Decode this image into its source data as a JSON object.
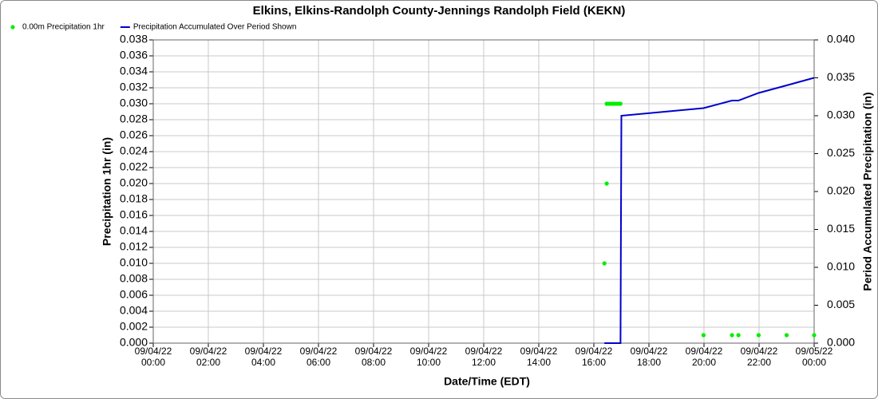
{
  "chart_data": {
    "type": "scatter-line",
    "title": "Elkins, Elkins-Randolph County-Jennings Randolph Field (KEKN)",
    "xlabel": "Date/Time (EDT)",
    "ylabel": "Precipitation 1hr (in)",
    "y2label": "Period Accumulated Precipitation (in)",
    "xlim": [
      "2022-09-04T00:00",
      "2022-09-05T00:00"
    ],
    "xticks": [
      {
        "value": "2022-09-04T00:00",
        "label": "09/04/22\n00:00"
      },
      {
        "value": "2022-09-04T02:00",
        "label": "09/04/22\n02:00"
      },
      {
        "value": "2022-09-04T04:00",
        "label": "09/04/22\n04:00"
      },
      {
        "value": "2022-09-04T06:00",
        "label": "09/04/22\n06:00"
      },
      {
        "value": "2022-09-04T08:00",
        "label": "09/04/22\n08:00"
      },
      {
        "value": "2022-09-04T10:00",
        "label": "09/04/22\n10:00"
      },
      {
        "value": "2022-09-04T12:00",
        "label": "09/04/22\n12:00"
      },
      {
        "value": "2022-09-04T14:00",
        "label": "09/04/22\n14:00"
      },
      {
        "value": "2022-09-04T16:00",
        "label": "09/04/22\n16:00"
      },
      {
        "value": "2022-09-04T18:00",
        "label": "09/04/22\n18:00"
      },
      {
        "value": "2022-09-04T20:00",
        "label": "09/04/22\n20:00"
      },
      {
        "value": "2022-09-04T22:00",
        "label": "09/04/22\n22:00"
      },
      {
        "value": "2022-09-05T00:00",
        "label": "09/05/22\n00:00"
      }
    ],
    "ylim": [
      0,
      0.038
    ],
    "yticks": [
      {
        "value": 0,
        "label": "0.000"
      },
      {
        "value": 0.002,
        "label": "0.002"
      },
      {
        "value": 0.004,
        "label": "0.004"
      },
      {
        "value": 0.006,
        "label": "0.006"
      },
      {
        "value": 0.008,
        "label": "0.008"
      },
      {
        "value": 0.01,
        "label": "0.010"
      },
      {
        "value": 0.012,
        "label": "0.012"
      },
      {
        "value": 0.014,
        "label": "0.014"
      },
      {
        "value": 0.016,
        "label": "0.016"
      },
      {
        "value": 0.018,
        "label": "0.018"
      },
      {
        "value": 0.02,
        "label": "0.020"
      },
      {
        "value": 0.022,
        "label": "0.022"
      },
      {
        "value": 0.024,
        "label": "0.024"
      },
      {
        "value": 0.026,
        "label": "0.026"
      },
      {
        "value": 0.028,
        "label": "0.028"
      },
      {
        "value": 0.03,
        "label": "0.030"
      },
      {
        "value": 0.032,
        "label": "0.032"
      },
      {
        "value": 0.034,
        "label": "0.034"
      },
      {
        "value": 0.036,
        "label": "0.036"
      },
      {
        "value": 0.038,
        "label": "0.038"
      }
    ],
    "y2lim": [
      0,
      0.04
    ],
    "y2ticks": [
      {
        "value": 0,
        "label": "0.000"
      },
      {
        "value": 0.005,
        "label": "0.005"
      },
      {
        "value": 0.01,
        "label": "0.010"
      },
      {
        "value": 0.015,
        "label": "0.015"
      },
      {
        "value": 0.02,
        "label": "0.020"
      },
      {
        "value": 0.025,
        "label": "0.025"
      },
      {
        "value": 0.03,
        "label": "0.030"
      },
      {
        "value": 0.035,
        "label": "0.035"
      },
      {
        "value": 0.04,
        "label": "0.040"
      }
    ],
    "grid": true,
    "legend": "top-left",
    "series": [
      {
        "name": "0.00m Precipitation 1hr",
        "color": "#00ee00",
        "kind": "scatter",
        "x": [
          "2022-09-04T16:23",
          "2022-09-04T16:28",
          "2022-09-04T16:28",
          "2022-09-04T16:33",
          "2022-09-04T16:38",
          "2022-09-04T16:43",
          "2022-09-04T16:48",
          "2022-09-04T16:53",
          "2022-09-04T16:58",
          "2022-09-04T19:59",
          "2022-09-04T21:01",
          "2022-09-04T21:15",
          "2022-09-04T21:59",
          "2022-09-04T23:00",
          "2022-09-05T00:00"
        ],
        "values": [
          0.01,
          0.02,
          0.03,
          0.03,
          0.03,
          0.03,
          0.03,
          0.03,
          0.03,
          0.001,
          0.001,
          0.001,
          0.001,
          0.001,
          0.001
        ]
      },
      {
        "name": "Precipitation Accumulated Over Period Shown",
        "color": "#0000cc",
        "kind": "line",
        "axis": "y2",
        "x": [
          "2022-09-04T16:23",
          "2022-09-04T16:58",
          "2022-09-04T17:00",
          "2022-09-04T19:59",
          "2022-09-04T21:01",
          "2022-09-04T21:15",
          "2022-09-04T21:59",
          "2022-09-04T23:00",
          "2022-09-05T00:00"
        ],
        "values": [
          0,
          0,
          0.03,
          0.031,
          0.032,
          0.032,
          0.033,
          0.034,
          0.035
        ]
      }
    ]
  }
}
